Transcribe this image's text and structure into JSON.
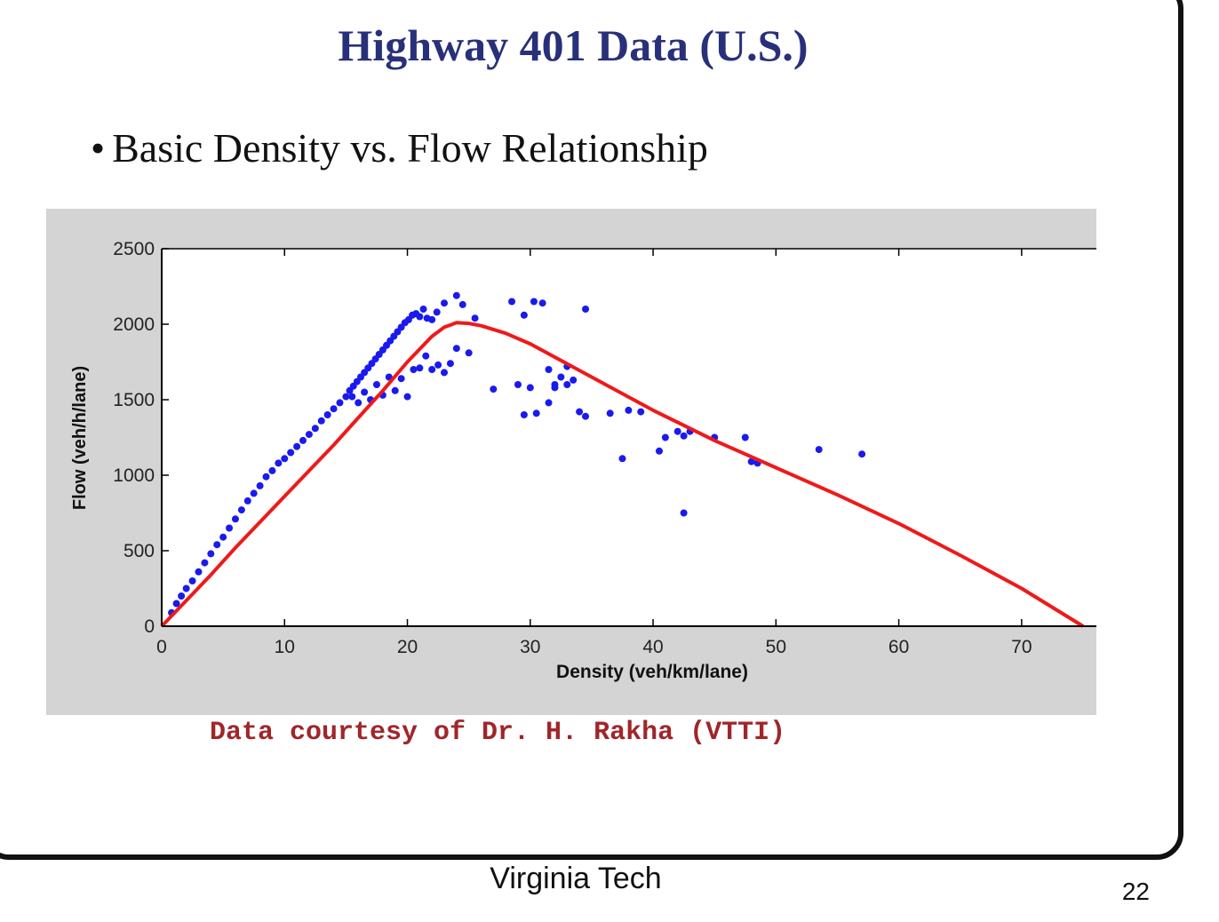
{
  "slide": {
    "title": "Highway 401 Data (U.S.)",
    "bullet": "Basic Density vs. Flow Relationship",
    "credit": "Data courtesy of Dr. H. Rakha (VTTI)",
    "footer": "Virginia Tech",
    "page_number": "22"
  },
  "chart_data": {
    "type": "scatter",
    "xlabel": "Density (veh/km/lane)",
    "ylabel": "Flow (veh/h/lane)",
    "xlim": [
      0,
      75
    ],
    "ylim": [
      0,
      2500
    ],
    "xticks": [
      0,
      10,
      20,
      30,
      40,
      50,
      60,
      70
    ],
    "yticks": [
      0,
      500,
      1000,
      1500,
      2000,
      2500
    ],
    "grid": false,
    "colors": {
      "points": "#1a1aee",
      "fit": "#ee1a1a",
      "panel": "#d4d4d4",
      "axes": "#ffffff"
    },
    "series": [
      {
        "kind": "points",
        "x": [
          0.8,
          1.2,
          1.6,
          2.0,
          2.5,
          3.0,
          3.5,
          4.0,
          4.5,
          5.0,
          5.5,
          6.0,
          6.5,
          7.0,
          7.5,
          8.0,
          8.5,
          9.0,
          9.5,
          10.0,
          10.5,
          11.0,
          11.5,
          12.0,
          12.5,
          13.0,
          13.5,
          14.0,
          14.5,
          15.0,
          15.3,
          15.6,
          15.9,
          16.2,
          16.5,
          16.8,
          17.1,
          17.4,
          17.7,
          18.0,
          18.3,
          18.6,
          18.9,
          19.2,
          19.5,
          19.8,
          20.1,
          20.4,
          20.7,
          21.0,
          21.3,
          21.6,
          22.0,
          22.4,
          23.0,
          24.0,
          24.5,
          25.5,
          28.5,
          29.5,
          30.3,
          31.0,
          30.0,
          29.0,
          31.5,
          32.0,
          32.5,
          33.0,
          33.5,
          34.0,
          34.5,
          29.5,
          30.5,
          36.5,
          37.5,
          38.0,
          39.0,
          40.5,
          41.0,
          42.0,
          42.5,
          43.0,
          42.5,
          45.0,
          47.5,
          48.0,
          48.5,
          53.5,
          57.0,
          34.5,
          27.0,
          24.0,
          23.0,
          22.0,
          21.0,
          20.0,
          19.0,
          18.0,
          17.0,
          16.0,
          15.5,
          16.5,
          17.5,
          18.5,
          19.5,
          20.5,
          21.5,
          22.5,
          23.5,
          25.0,
          32.0,
          33.0,
          31.5
        ],
        "y": [
          90,
          150,
          200,
          250,
          300,
          360,
          420,
          480,
          540,
          590,
          650,
          710,
          770,
          830,
          880,
          930,
          990,
          1030,
          1080,
          1110,
          1150,
          1190,
          1230,
          1270,
          1310,
          1360,
          1400,
          1440,
          1480,
          1520,
          1560,
          1590,
          1620,
          1650,
          1680,
          1710,
          1740,
          1770,
          1800,
          1830,
          1860,
          1890,
          1920,
          1950,
          1980,
          2010,
          2030,
          2060,
          2070,
          2050,
          2100,
          2040,
          2030,
          2080,
          2140,
          2190,
          2130,
          2040,
          2150,
          2060,
          2150,
          2140,
          1580,
          1600,
          1700,
          1600,
          1650,
          1600,
          1630,
          1420,
          2100,
          1400,
          1410,
          1410,
          1110,
          1430,
          1420,
          1160,
          1250,
          1290,
          750,
          1290,
          1260,
          1250,
          1250,
          1090,
          1080,
          1170,
          1140,
          1390,
          1570,
          1840,
          1680,
          1700,
          1710,
          1520,
          1560,
          1530,
          1500,
          1480,
          1520,
          1550,
          1600,
          1650,
          1640,
          1700,
          1790,
          1730,
          1740,
          1810,
          1580,
          1720,
          1480
        ],
        "marker": "dot"
      },
      {
        "kind": "fit",
        "x": [
          0,
          2,
          4,
          6,
          8,
          10,
          12,
          14,
          16,
          18,
          20,
          22,
          23,
          24,
          25,
          26,
          28,
          30,
          35,
          40,
          45,
          50,
          55,
          60,
          65,
          70,
          75
        ],
        "y": [
          0,
          170,
          340,
          520,
          690,
          860,
          1030,
          1200,
          1380,
          1560,
          1750,
          1920,
          1980,
          2010,
          2005,
          1990,
          1940,
          1870,
          1650,
          1430,
          1230,
          1050,
          870,
          680,
          470,
          250,
          0
        ],
        "marker": "line"
      }
    ]
  }
}
